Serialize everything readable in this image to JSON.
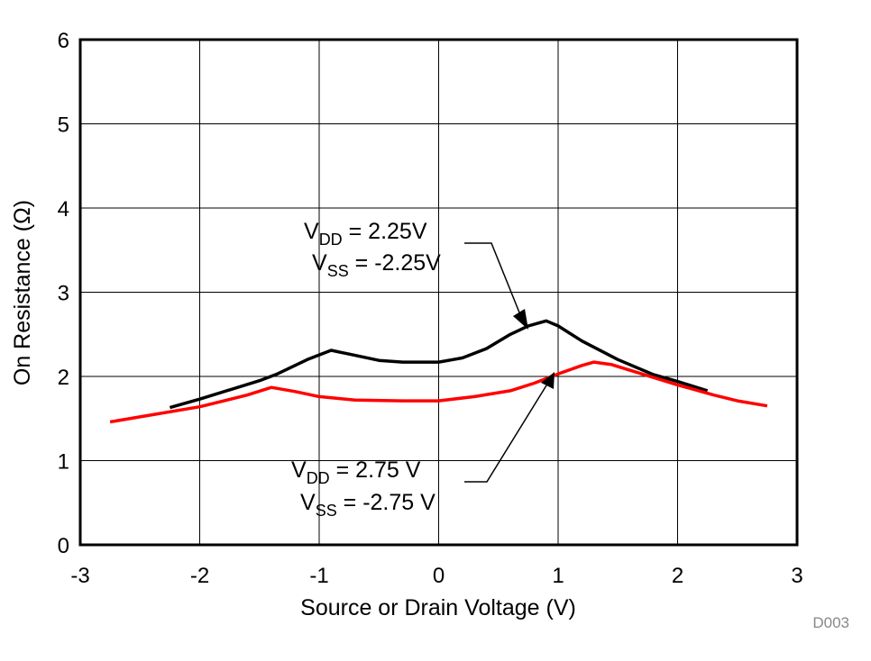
{
  "chart_data": {
    "type": "line",
    "xlabel": "Source or Drain Voltage (V)",
    "ylabel": "On Resistance (Ω)",
    "xlim": [
      -3,
      3
    ],
    "ylim": [
      0,
      6
    ],
    "xticks": [
      "-3",
      "-2",
      "-1",
      "0",
      "1",
      "2",
      "3"
    ],
    "yticks": [
      "0",
      "1",
      "2",
      "3",
      "4",
      "5",
      "6"
    ],
    "grid": true,
    "footnote": "D003",
    "series": [
      {
        "color": "#000000",
        "label_lines": [
          {
            "main": "V",
            "sub": "DD",
            "rest": " = 2.25V"
          },
          {
            "main": "V",
            "sub": "SS",
            "rest": " = -2.25V"
          }
        ],
        "x": [
          -2.25,
          -2,
          -1.5,
          -1.35,
          -1.1,
          -0.9,
          -0.7,
          -0.5,
          -0.3,
          0,
          0.2,
          0.4,
          0.6,
          0.75,
          0.9,
          1.0,
          1.2,
          1.5,
          1.8,
          2.0,
          2.25
        ],
        "y": [
          1.63,
          1.73,
          1.95,
          2.03,
          2.2,
          2.31,
          2.25,
          2.19,
          2.17,
          2.17,
          2.22,
          2.33,
          2.5,
          2.6,
          2.66,
          2.6,
          2.42,
          2.2,
          2.02,
          1.94,
          1.83
        ]
      },
      {
        "color": "#ff0000",
        "label_lines": [
          {
            "main": "V",
            "sub": "DD",
            "rest": " = 2.75 V"
          },
          {
            "main": "V",
            "sub": "SS",
            "rest": " = -2.75 V"
          }
        ],
        "x": [
          -2.75,
          -2.5,
          -2,
          -1.6,
          -1.4,
          -1.2,
          -1,
          -0.7,
          -0.3,
          0,
          0.3,
          0.6,
          0.8,
          1.0,
          1.2,
          1.3,
          1.45,
          1.7,
          2.0,
          2.3,
          2.5,
          2.75
        ],
        "y": [
          1.46,
          1.52,
          1.64,
          1.78,
          1.87,
          1.82,
          1.76,
          1.72,
          1.71,
          1.71,
          1.76,
          1.83,
          1.92,
          2.03,
          2.13,
          2.17,
          2.14,
          2.03,
          1.9,
          1.78,
          1.71,
          1.65
        ]
      }
    ]
  }
}
